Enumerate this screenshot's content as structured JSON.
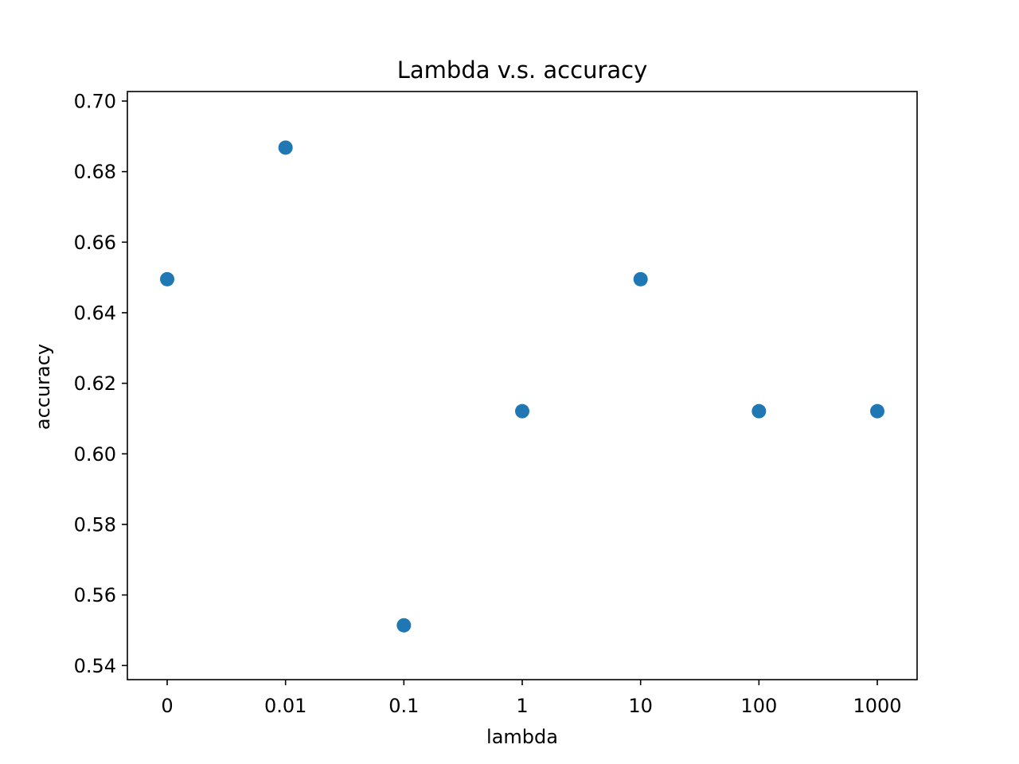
{
  "chart_data": {
    "type": "scatter",
    "title": "Lambda v.s. accuracy",
    "xlabel": "lambda",
    "ylabel": "accuracy",
    "categories": [
      "0",
      "0.01",
      "0.1",
      "1",
      "10",
      "100",
      "1000"
    ],
    "series": [
      {
        "values": [
          0.6495,
          0.6868,
          0.5514,
          0.6121,
          0.6495,
          0.6121,
          0.6121
        ]
      }
    ],
    "ylim": [
      0.536,
      0.7027
    ],
    "yticks": [
      0.54,
      0.56,
      0.58,
      0.6,
      0.62,
      0.64,
      0.66,
      0.68,
      0.7
    ],
    "ytick_labels": [
      "0.54",
      "0.56",
      "0.58",
      "0.60",
      "0.62",
      "0.64",
      "0.66",
      "0.68",
      "0.70"
    ],
    "grid": false,
    "legend": "none",
    "marker_color": "#1f77b4"
  }
}
